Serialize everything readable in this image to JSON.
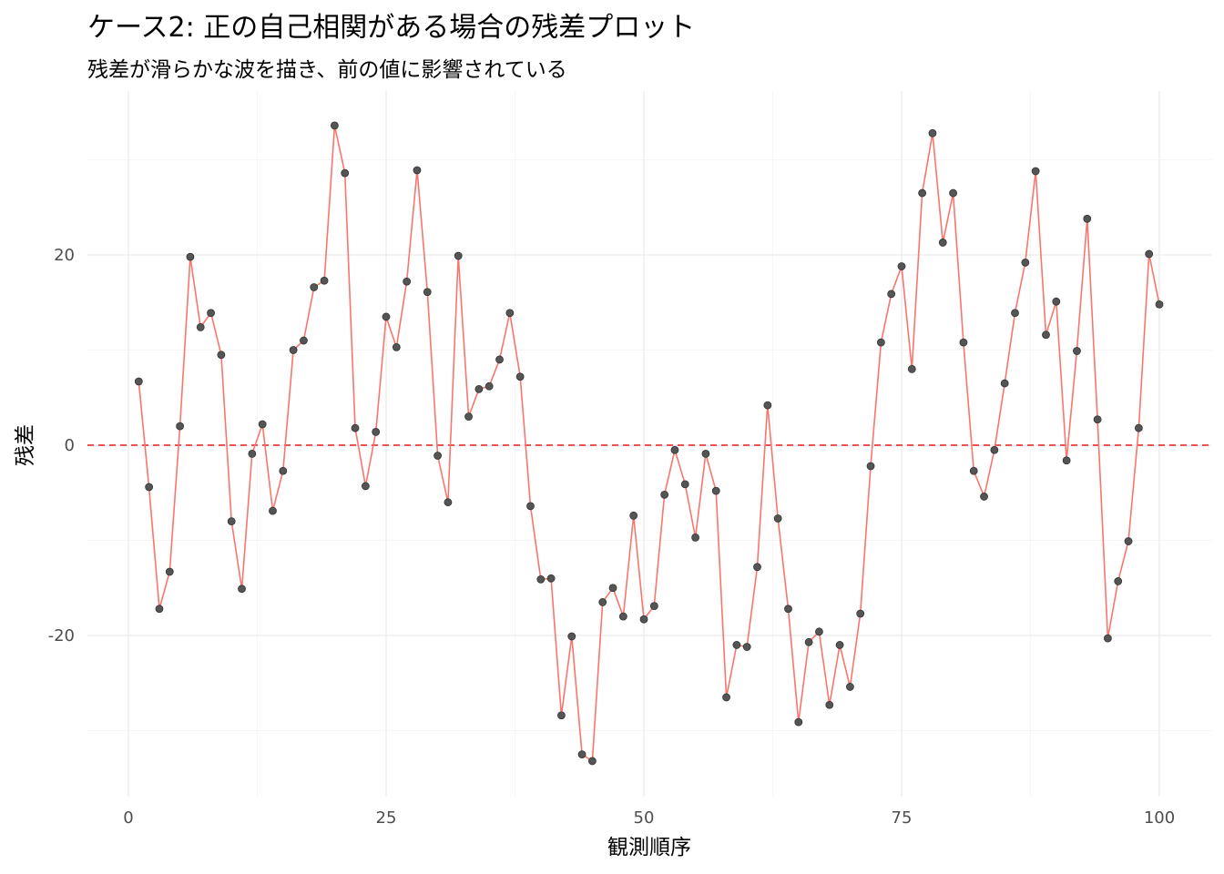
{
  "chart_data": {
    "type": "line",
    "title": "ケース2: 正の自己相関がある場合の残差プロット",
    "subtitle": "残差が滑らかな波を描き、前の値に影響されている",
    "xlabel": "観測順序",
    "ylabel": "残差",
    "xlim": [
      0,
      100
    ],
    "ylim": [
      -36,
      36
    ],
    "x_ticks": [
      0,
      25,
      50,
      75,
      100
    ],
    "y_ticks": [
      -20,
      0,
      20
    ],
    "reference_line": {
      "y": 0,
      "style": "dashed",
      "color": "#e41a1c"
    },
    "line_color": "#f8766d",
    "point_color": "#555555",
    "grid": true,
    "x": [
      1,
      2,
      3,
      4,
      5,
      6,
      7,
      8,
      9,
      10,
      11,
      12,
      13,
      14,
      15,
      16,
      17,
      18,
      19,
      20,
      21,
      22,
      23,
      24,
      25,
      26,
      27,
      28,
      29,
      30,
      31,
      32,
      33,
      34,
      35,
      36,
      37,
      38,
      39,
      40,
      41,
      42,
      43,
      44,
      45,
      46,
      47,
      48,
      49,
      50,
      51,
      52,
      53,
      54,
      55,
      56,
      57,
      58,
      59,
      60,
      61,
      62,
      63,
      64,
      65,
      66,
      67,
      68,
      69,
      70,
      71,
      72,
      73,
      74,
      75,
      76,
      77,
      78,
      79,
      80,
      81,
      82,
      83,
      84,
      85,
      86,
      87,
      88,
      89,
      90,
      91,
      92,
      93,
      94,
      95,
      96,
      97,
      98,
      99,
      100
    ],
    "y": [
      6.7,
      -4.4,
      -17.2,
      -13.3,
      2.0,
      19.8,
      12.4,
      13.9,
      9.5,
      -8.0,
      -15.1,
      -0.9,
      2.2,
      -6.9,
      -2.7,
      10.0,
      11.0,
      16.6,
      17.3,
      33.6,
      28.6,
      1.8,
      -4.3,
      1.4,
      13.5,
      10.3,
      17.2,
      28.9,
      16.1,
      -1.1,
      -6.0,
      19.9,
      3.0,
      5.9,
      6.2,
      9.0,
      13.9,
      7.2,
      -6.4,
      -14.1,
      -14.0,
      -28.4,
      -20.1,
      -32.5,
      -33.2,
      -16.5,
      -15.0,
      -18.0,
      -7.4,
      -18.3,
      -16.9,
      -5.2,
      -0.5,
      -4.1,
      -9.7,
      -0.9,
      -4.8,
      -26.5,
      -21.0,
      -21.2,
      -12.8,
      4.2,
      -7.7,
      -17.2,
      -29.1,
      -20.7,
      -19.6,
      -27.3,
      -21.0,
      -25.4,
      -17.7,
      -2.2,
      10.8,
      15.9,
      18.8,
      8.0,
      26.5,
      32.8,
      21.3,
      26.5,
      10.8,
      -2.7,
      -5.4,
      -0.5,
      6.5,
      13.9,
      19.2,
      28.8,
      11.6,
      15.1,
      -1.6,
      9.9,
      23.8,
      2.7,
      -20.3,
      -14.3,
      -10.1,
      1.8,
      20.1,
      14.8
    ]
  }
}
